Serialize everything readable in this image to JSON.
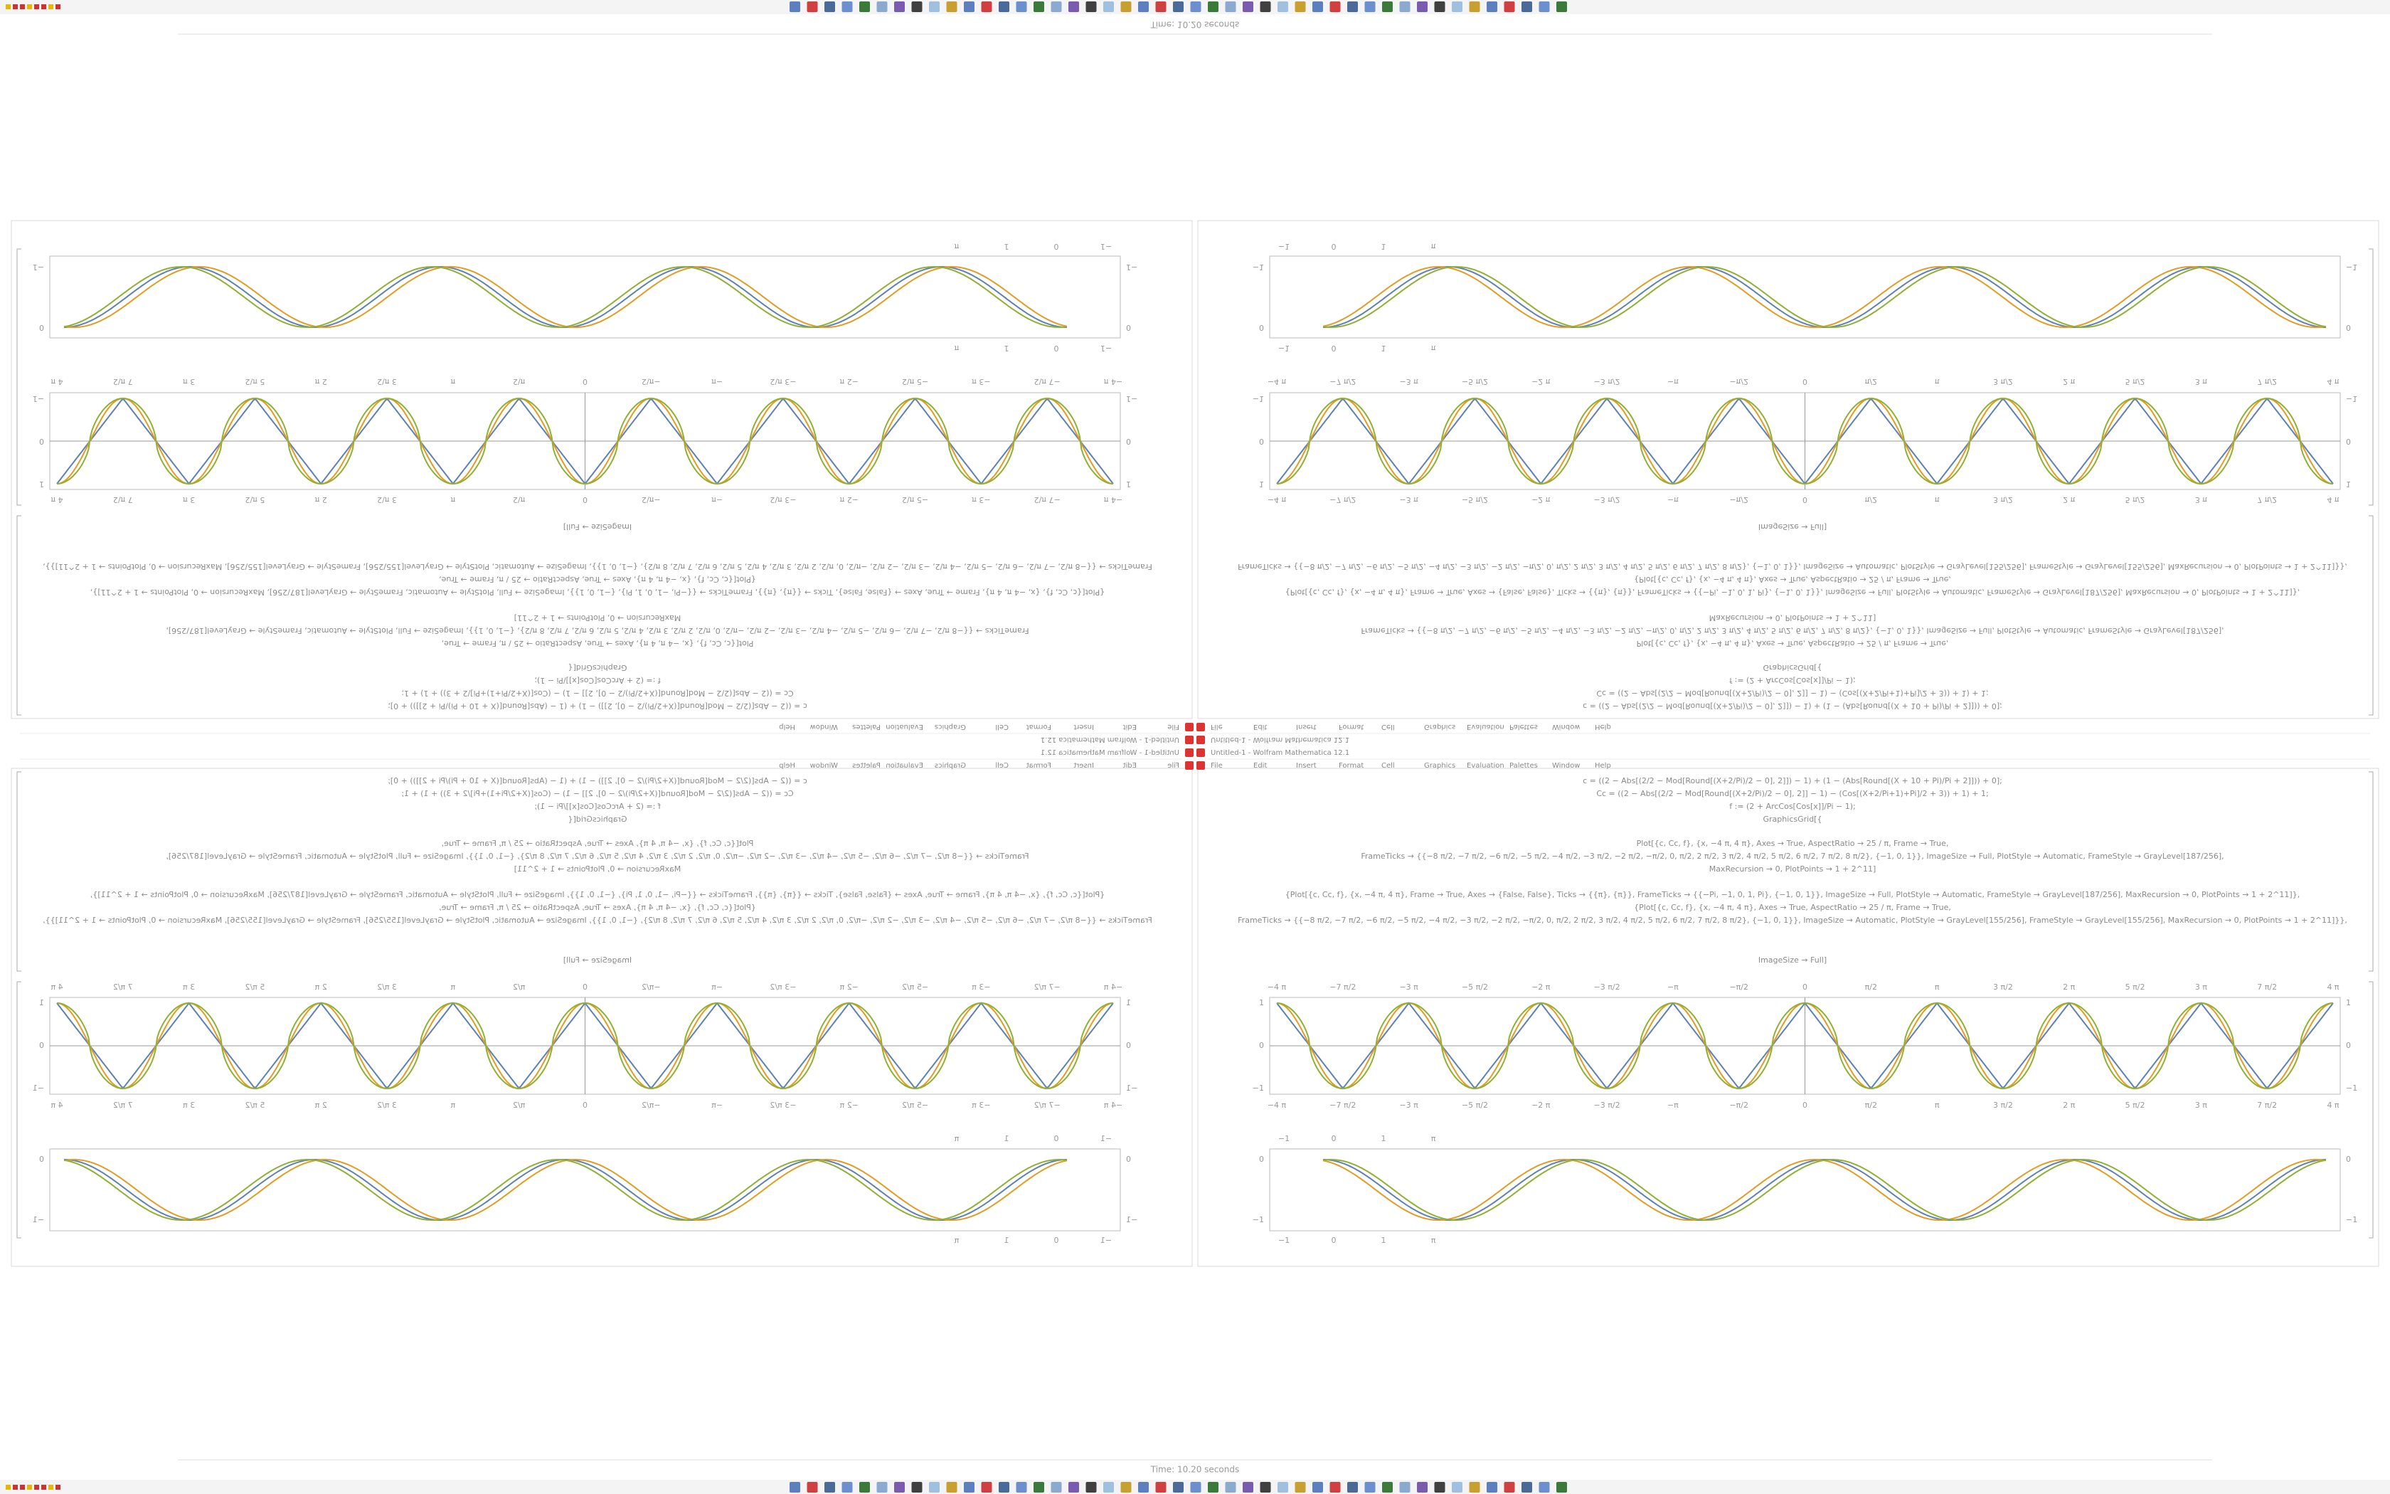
{
  "status": {
    "time": "Time: 10.20 seconds"
  },
  "window": {
    "title": "Untitled-1 - Wolfram Mathematica 12.1",
    "menu": [
      "File",
      "Edit",
      "Insert",
      "Format",
      "Cell",
      "Graphics",
      "Evaluation",
      "Palettes",
      "Window",
      "Help"
    ]
  },
  "notebook": {
    "code": [
      "c = ((2 − Abs[(2/2 − Mod[Round[(X+2/Pi)/2 − 0], 2]]) − 1) + (1 − (Abs[Round[(X + 10 + Pi)/Pi + 2]])) + 0];",
      "Cc = ((2 − Abs[(2/2 − Mod[Round[(X+2/Pi)/2 − 0], 2]] − 1) − (Cos[(X+2/Pi+1)+Pi]/2 + 3)) + 1) + 1;",
      "f := (2 + ArcCos[Cos[x]]/Pi − 1);",
      "GraphicsGrid[{",
      "Plot[{c, Cc, f}, {x, −4 π, 4 π}, Axes → True, AspectRatio → 25 / π, Frame → True,",
      "FrameTicks → {{−8 π/2, −7 π/2, −6 π/2, −5 π/2, −4 π/2, −3 π/2, −2 π/2, −π/2, 0, π/2, 2 π/2, 3 π/2, 4 π/2, 5 π/2, 6 π/2, 7 π/2, 8 π/2}, {−1, 0, 1}}, ImageSize → Full, PlotStyle → Automatic, FrameStyle → GrayLevel[187/256],",
      "MaxRecursion → 0, PlotPoints → 1 + 2^11]",
      "{Plot[{c, Cc, f}, {x, −4 π, 4 π}, Frame → True, Axes → {False, False}, Ticks → {{π}, {π}}, FrameTicks → {{−Pi, −1, 0, 1, Pi}, {−1, 0, 1}}, ImageSize → Full, PlotStyle → Automatic, FrameStyle → GrayLevel[187/256], MaxRecursion → 0, PlotPoints → 1 + 2^11]},",
      "{Plot[{c, Cc, f}, {x, −4 π, 4 π}, Axes → True, AspectRatio → 25 / π, Frame → True,",
      "FrameTicks → {{−8 π/2, −7 π/2, −6 π/2, −5 π/2, −4 π/2, −3 π/2, −2 π/2, −π/2, 0, π/2, 2 π/2, 3 π/2, 4 π/2, 5 π/2, 6 π/2, 7 π/2, 8 π/2}, {−1, 0, 1}}, ImageSize → Automatic, PlotStyle → GrayLevel[155/256], FrameStyle → GrayLevel[155/256], MaxRecursion → 0, PlotPoints → 1 + 2^11]}},",
      "ImageSize → Full]"
    ],
    "graph_a_ticks": [
      "−4 π",
      "−7 π/2",
      "−3 π",
      "−5 π/2",
      "−2 π",
      "−3 π/2",
      "−π",
      "−π/2",
      "0",
      "π/2",
      "π",
      "3 π/2",
      "2 π",
      "5 π/2",
      "3 π",
      "7 π/2",
      "4 π"
    ],
    "graph_a_y": [
      "1",
      "0",
      "−1"
    ],
    "graph_b_top": [
      "−1",
      "0",
      "1",
      "π"
    ],
    "graph_b_y": [
      "0",
      "−1"
    ]
  }
}
